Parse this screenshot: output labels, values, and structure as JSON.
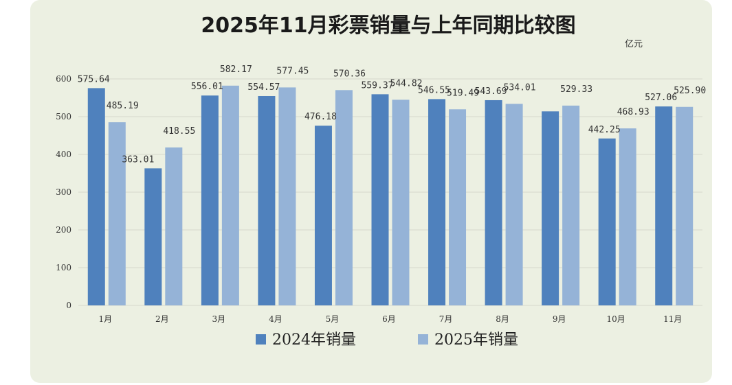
{
  "chart_data": {
    "type": "bar",
    "title": "2025年11月彩票销量与上年同期比较图",
    "unit": "亿元",
    "categories": [
      "1月",
      "2月",
      "3月",
      "4月",
      "5月",
      "6月",
      "7月",
      "8月",
      "9月",
      "10月",
      "11月"
    ],
    "series": [
      {
        "name": "2024年销量",
        "color": "#4f81bd",
        "values": [
          575.64,
          363.01,
          556.01,
          554.57,
          476.18,
          559.37,
          546.55,
          543.69,
          514.0,
          442.25,
          527.06
        ],
        "labels": [
          "575.64",
          "363.01",
          "556.01",
          "554.57",
          "476.18",
          "559.37",
          "546.55",
          "543.69",
          "",
          "442.25",
          "527.06"
        ]
      },
      {
        "name": "2025年销量",
        "color": "#95b3d7",
        "values": [
          485.19,
          418.55,
          582.17,
          577.45,
          570.36,
          544.82,
          519.49,
          534.01,
          529.33,
          468.93,
          525.9
        ],
        "labels": [
          "485.19",
          "418.55",
          "582.17",
          "577.45",
          "570.36",
          "544.82",
          "519.49",
          "534.01",
          "529.33",
          "468.93",
          "525.90"
        ]
      }
    ],
    "y_ticks": [
      0,
      100,
      200,
      300,
      400,
      500,
      600
    ],
    "ylim": [
      0,
      600
    ],
    "grid": true,
    "legend": "bottom"
  }
}
